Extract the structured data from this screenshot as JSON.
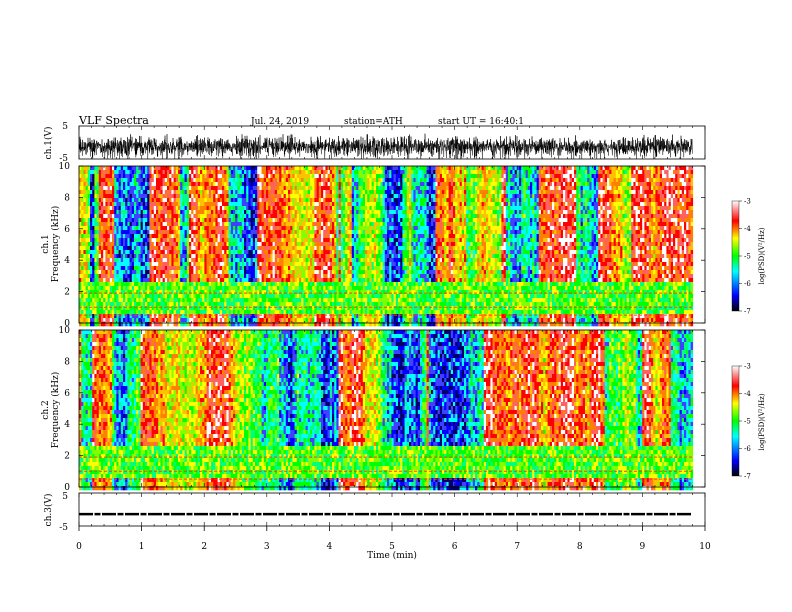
{
  "header": {
    "title": "VLF Spectra",
    "date": "Jul. 24, 2019",
    "station": "station=ATH",
    "start": "start UT = 16:40:1"
  },
  "chart_data": [
    {
      "type": "line",
      "panel": "ch1-waveform",
      "ylabel": "ch.1(V)",
      "yticks": [
        "5",
        "-5"
      ],
      "ylim": [
        -5,
        5
      ],
      "xlim": [
        0,
        10
      ],
      "data_span_min": [
        0,
        9.8
      ],
      "description_values": {
        "mean": -1,
        "amplitude": 3
      }
    },
    {
      "type": "heatmap",
      "panel": "ch1-spectrogram",
      "ylabel_line1": "ch.1",
      "ylabel_line2": "Frequency (kHz)",
      "yticks": [
        "0",
        "2",
        "4",
        "6",
        "8",
        "10"
      ],
      "ylim": [
        0,
        10
      ],
      "xlim": [
        0,
        10
      ],
      "data_span_min": [
        0,
        9.8
      ],
      "zlim": [
        -7,
        -3
      ],
      "colorbar": {
        "label": "log(PSD)(V²/Hz)",
        "ticks": [
          "-3",
          "-4",
          "-5",
          "-6",
          "-7"
        ]
      }
    },
    {
      "type": "heatmap",
      "panel": "ch2-spectrogram",
      "ylabel_line1": "ch.2",
      "ylabel_line2": "Frequency (kHz)",
      "yticks": [
        "0",
        "2",
        "4",
        "6",
        "8",
        "10"
      ],
      "ylim": [
        0,
        10
      ],
      "xlim": [
        0,
        10
      ],
      "data_span_min": [
        0,
        9.8
      ],
      "zlim": [
        -7,
        -3
      ],
      "colorbar": {
        "label": "log(PSD)(V²/Hz)",
        "ticks": [
          "-3",
          "-4",
          "-5",
          "-6",
          "-7"
        ]
      }
    },
    {
      "type": "line",
      "panel": "ch3-waveform",
      "ylabel": "ch.3(V)",
      "yticks": [
        "5",
        "-5"
      ],
      "ylim": [
        -5,
        5
      ],
      "xlim": [
        0,
        10
      ],
      "data_span_min": [
        0,
        9.8
      ],
      "description_values": {
        "mean": -1.4,
        "amplitude": 0.3
      }
    }
  ],
  "xaxis": {
    "label": "Time (min)",
    "ticks": [
      "0",
      "1",
      "2",
      "3",
      "4",
      "5",
      "6",
      "7",
      "8",
      "9",
      "10"
    ]
  },
  "colors": {
    "background": "#ffffff",
    "trace": "#000000",
    "colormap": [
      "#000000",
      "#0000ff",
      "#00ffff",
      "#00ff00",
      "#ffff00",
      "#ff0000",
      "#ffffff"
    ]
  }
}
